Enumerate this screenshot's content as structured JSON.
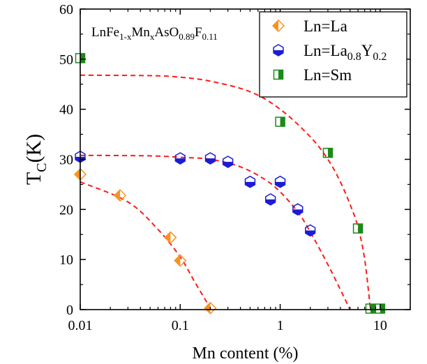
{
  "chart_data": {
    "type": "scatter",
    "xlabel": "Mn content (%)",
    "ylabel": "T",
    "ylabel_sub": "C",
    "ylabel_suffix": "(K)",
    "x_scale": "log",
    "xlim": [
      0.01,
      20
    ],
    "ylim": [
      0,
      60
    ],
    "grid": false,
    "legend_position": "top-right",
    "x_ticks": [
      0.01,
      0.1,
      1,
      10
    ],
    "x_tick_labels": [
      "0.01",
      "0.1",
      "1",
      "10"
    ],
    "y_ticks": [
      0,
      10,
      20,
      30,
      40,
      50,
      60
    ],
    "y_tick_labels": [
      "0",
      "10",
      "20",
      "30",
      "40",
      "50",
      "60"
    ],
    "annotation": {
      "parts": [
        {
          "text": "LnFe",
          "pos": "base"
        },
        {
          "text": "1-x",
          "pos": "sub"
        },
        {
          "text": "Mn",
          "pos": "base"
        },
        {
          "text": "x",
          "pos": "sub"
        },
        {
          "text": "AsO",
          "pos": "base"
        },
        {
          "text": "0.89",
          "pos": "sub"
        },
        {
          "text": "F",
          "pos": "base"
        },
        {
          "text": "0.11",
          "pos": "sub"
        }
      ]
    },
    "series": [
      {
        "name": "Ln=La",
        "legend_parts": [
          {
            "text": "Ln=La",
            "pos": "base"
          }
        ],
        "marker": "diamond-left-filled",
        "color": "#f7931e",
        "points": [
          [
            0.01,
            27
          ],
          [
            0.025,
            22.8
          ],
          [
            0.08,
            14.4
          ],
          [
            0.1,
            9.8
          ],
          [
            0.2,
            0.3
          ]
        ]
      },
      {
        "name": "Ln=La0.8Y0.2",
        "legend_parts": [
          {
            "text": "Ln=La",
            "pos": "base"
          },
          {
            "text": "0.8",
            "pos": "sub"
          },
          {
            "text": "Y",
            "pos": "base"
          },
          {
            "text": "0.2",
            "pos": "sub"
          }
        ],
        "marker": "hexagon-bottom-filled",
        "color": "#1c1cd8",
        "points": [
          [
            0.01,
            30.5
          ],
          [
            0.1,
            30.2
          ],
          [
            0.2,
            30.2
          ],
          [
            0.3,
            29.5
          ],
          [
            0.5,
            25.5
          ],
          [
            0.8,
            22
          ],
          [
            1,
            25.5
          ],
          [
            1.5,
            20
          ],
          [
            2,
            15.8
          ]
        ]
      },
      {
        "name": "Ln=Sm",
        "legend_parts": [
          {
            "text": "Ln=Sm",
            "pos": "base"
          }
        ],
        "marker": "square-right-filled",
        "color": "#1b8a1b",
        "points": [
          [
            0.01,
            50.2
          ],
          [
            1,
            37.5
          ],
          [
            3,
            31.3
          ],
          [
            6,
            16.2
          ],
          [
            8,
            0.2
          ],
          [
            10,
            0.2
          ]
        ]
      }
    ],
    "fit_curves": [
      {
        "color": "#ff1a1a",
        "points": [
          [
            0.01,
            25.5
          ],
          [
            0.03,
            21.5
          ],
          [
            0.06,
            16
          ],
          [
            0.1,
            10.5
          ],
          [
            0.14,
            5.5
          ],
          [
            0.2,
            0.3
          ]
        ]
      },
      {
        "color": "#ff1a1a",
        "points": [
          [
            0.01,
            30.8
          ],
          [
            0.05,
            30.7
          ],
          [
            0.1,
            30.4
          ],
          [
            0.2,
            30
          ],
          [
            0.4,
            28.5
          ],
          [
            0.7,
            26
          ],
          [
            1,
            23.5
          ],
          [
            1.5,
            19.5
          ],
          [
            2,
            15.5
          ],
          [
            3,
            9
          ],
          [
            4,
            4
          ],
          [
            5,
            0
          ]
        ]
      },
      {
        "color": "#ff1a1a",
        "points": [
          [
            0.01,
            46.8
          ],
          [
            0.05,
            46.7
          ],
          [
            0.1,
            46.4
          ],
          [
            0.2,
            45.6
          ],
          [
            0.5,
            43.5
          ],
          [
            1,
            40
          ],
          [
            2,
            34.5
          ],
          [
            3,
            30
          ],
          [
            4,
            25.5
          ],
          [
            5,
            21
          ],
          [
            6,
            16.5
          ],
          [
            7,
            10
          ],
          [
            8,
            0
          ]
        ]
      }
    ]
  }
}
